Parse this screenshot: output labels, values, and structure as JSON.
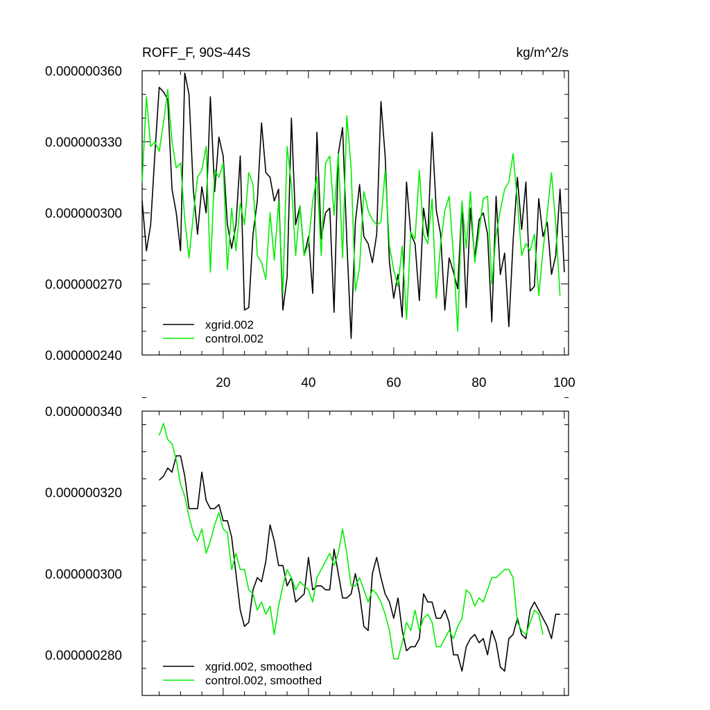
{
  "colors": {
    "xgrid": "#000000",
    "control": "#00ee00",
    "axis": "#000000",
    "background": "#ffffff"
  },
  "chart_data": [
    {
      "type": "line",
      "title": "ROFF_F, 90S-44S",
      "units": "kg/m^2/s",
      "xlabel": "",
      "ylabel": "",
      "xlim": [
        1,
        101
      ],
      "ylim": [
        2.4e-07,
        3.6e-07
      ],
      "x_ticks": [
        20,
        40,
        60,
        80,
        100
      ],
      "x_tick_labels": [
        "20",
        "40",
        "60",
        "80",
        "100"
      ],
      "y_ticks": [
        2.4e-07,
        2.7e-07,
        3e-07,
        3.3e-07,
        3.6e-07
      ],
      "y_tick_labels": [
        "0.000000240",
        "0.000000270",
        "0.000000300",
        "0.000000330",
        "0.000000360"
      ],
      "grid": false,
      "legend_position": "bottom-left",
      "x_start": 1,
      "series": [
        {
          "name": "xgrid.002",
          "color_key": "xgrid",
          "values": [
            3.05e-07,
            2.84e-07,
            2.95e-07,
            3.25e-07,
            3.53e-07,
            3.51e-07,
            3.48e-07,
            3.1e-07,
            3e-07,
            2.84e-07,
            3.59e-07,
            3.5e-07,
            3.1e-07,
            2.91e-07,
            3.11e-07,
            3e-07,
            3.49e-07,
            3.09e-07,
            3.32e-07,
            3.24e-07,
            2.95e-07,
            2.85e-07,
            2.95e-07,
            3.24e-07,
            2.59e-07,
            2.6e-07,
            2.91e-07,
            3.05e-07,
            3.38e-07,
            3.17e-07,
            3.15e-07,
            3.05e-07,
            3.1e-07,
            2.59e-07,
            2.73e-07,
            3.4e-07,
            2.95e-07,
            3.03e-07,
            2.82e-07,
            2.9e-07,
            2.66e-07,
            3.34e-07,
            2.89e-07,
            3e-07,
            3.02e-07,
            2.58e-07,
            3.25e-07,
            3.36e-07,
            2.88e-07,
            2.47e-07,
            2.96e-07,
            3.12e-07,
            2.9e-07,
            2.87e-07,
            2.79e-07,
            2.91e-07,
            3.47e-07,
            3.24e-07,
            2.79e-07,
            2.64e-07,
            2.74e-07,
            2.56e-07,
            3.13e-07,
            2.91e-07,
            2.87e-07,
            2.63e-07,
            3.02e-07,
            2.9e-07,
            3.34e-07,
            3.01e-07,
            2.91e-07,
            2.59e-07,
            2.81e-07,
            2.75e-07,
            2.68e-07,
            3.04e-07,
            2.6e-07,
            3.02e-07,
            2.81e-07,
            2.97e-07,
            3e-07,
            2.91e-07,
            2.54e-07,
            3.07e-07,
            2.74e-07,
            2.83e-07,
            2.52e-07,
            2.88e-07,
            3.15e-07,
            2.93e-07,
            3.13e-07,
            2.67e-07,
            2.69e-07,
            3.06e-07,
            2.9e-07,
            2.96e-07,
            2.74e-07,
            2.82e-07,
            3.1e-07,
            2.75e-07
          ]
        },
        {
          "name": "control.002",
          "color_key": "control",
          "values": [
            3.13e-07,
            3.49e-07,
            3.28e-07,
            3.3e-07,
            3.26e-07,
            3.38e-07,
            3.52e-07,
            3.3e-07,
            3.19e-07,
            3.21e-07,
            2.97e-07,
            2.81e-07,
            2.99e-07,
            3.15e-07,
            3.18e-07,
            3.28e-07,
            2.75e-07,
            3.18e-07,
            3.15e-07,
            3.21e-07,
            2.76e-07,
            3.02e-07,
            2.84e-07,
            3.04e-07,
            2.95e-07,
            3.17e-07,
            3.12e-07,
            2.82e-07,
            2.79e-07,
            2.72e-07,
            3e-07,
            2.8e-07,
            3.05e-07,
            2.66e-07,
            3.28e-07,
            3.12e-07,
            2.82e-07,
            3.03e-07,
            2.82e-07,
            2.87e-07,
            3.05e-07,
            3.15e-07,
            2.82e-07,
            3.21e-07,
            3.24e-07,
            2.99e-07,
            3.25e-07,
            2.81e-07,
            3.41e-07,
            3.19e-07,
            2.67e-07,
            2.77e-07,
            3.09e-07,
            3.01e-07,
            2.97e-07,
            2.95e-07,
            2.96e-07,
            3.18e-07,
            2.86e-07,
            2.76e-07,
            2.69e-07,
            2.86e-07,
            2.55e-07,
            2.92e-07,
            2.89e-07,
            3.18e-07,
            2.91e-07,
            2.87e-07,
            3.06e-07,
            2.64e-07,
            2.87e-07,
            3.01e-07,
            3.07e-07,
            2.82e-07,
            2.5e-07,
            3.05e-07,
            2.85e-07,
            3.09e-07,
            2.79e-07,
            2.92e-07,
            3.06e-07,
            3.07e-07,
            2.7e-07,
            2.91e-07,
            3.01e-07,
            3.1e-07,
            3.13e-07,
            3.25e-07,
            3.05e-07,
            2.82e-07,
            2.87e-07,
            2.84e-07,
            2.91e-07,
            2.65e-07,
            2.84e-07,
            3e-07,
            3.17e-07,
            2.95e-07,
            2.65e-07
          ]
        }
      ]
    },
    {
      "type": "line",
      "title": "",
      "xlabel": "",
      "ylabel": "",
      "xlim": [
        1,
        101
      ],
      "ylim": [
        2.7e-07,
        3.4e-07
      ],
      "x_ticks": [
        20,
        40,
        60,
        80,
        100
      ],
      "x_tick_labels": [],
      "y_ticks": [
        2.8e-07,
        3e-07,
        3.2e-07,
        3.4e-07
      ],
      "y_tick_labels": [
        "0.000000280",
        "0.000000300",
        "0.000000320",
        "0.000000340"
      ],
      "grid": false,
      "legend_position": "bottom-left",
      "x_start": 5,
      "series": [
        {
          "name": "xgrid.002, smoothed",
          "color_key": "xgrid",
          "values": [
            3.23e-07,
            3.24e-07,
            3.26e-07,
            3.25e-07,
            3.29e-07,
            3.29e-07,
            3.24e-07,
            3.16e-07,
            3.16e-07,
            3.16e-07,
            3.25e-07,
            3.18e-07,
            3.16e-07,
            3.16e-07,
            3.17e-07,
            3.13e-07,
            3.13e-07,
            3.09e-07,
            3e-07,
            2.91e-07,
            2.87e-07,
            2.88e-07,
            2.96e-07,
            2.99e-07,
            2.98e-07,
            3.03e-07,
            3.12e-07,
            3.08e-07,
            3.02e-07,
            3.02e-07,
            2.97e-07,
            2.99e-07,
            2.93e-07,
            2.94e-07,
            2.95e-07,
            3.04e-07,
            2.96e-07,
            2.97e-07,
            2.97e-07,
            2.96e-07,
            2.96e-07,
            3.06e-07,
            3e-07,
            2.94e-07,
            2.94e-07,
            2.95e-07,
            3e-07,
            2.95e-07,
            2.87e-07,
            2.86e-07,
            3e-07,
            3.04e-07,
            2.99e-07,
            2.95e-07,
            2.93e-07,
            2.89e-07,
            2.94e-07,
            2.86e-07,
            2.81e-07,
            2.82e-07,
            2.82e-07,
            2.84e-07,
            2.95e-07,
            2.93e-07,
            2.93e-07,
            2.89e-07,
            2.89e-07,
            2.91e-07,
            2.88e-07,
            2.8e-07,
            2.8e-07,
            2.76e-07,
            2.82e-07,
            2.84e-07,
            2.85e-07,
            2.83e-07,
            2.84e-07,
            2.8e-07,
            2.86e-07,
            2.83e-07,
            2.77e-07,
            2.76e-07,
            2.84e-07,
            2.85e-07,
            2.89e-07,
            2.85e-07,
            2.84e-07,
            2.91e-07,
            2.93e-07,
            2.91e-07,
            2.89e-07,
            2.87e-07,
            2.84e-07,
            2.9e-07,
            2.9e-07
          ]
        },
        {
          "name": "control.002, smoothed",
          "color_key": "control",
          "values": [
            3.34e-07,
            3.37e-07,
            3.33e-07,
            3.32e-07,
            3.28e-07,
            3.22e-07,
            3.19e-07,
            3.14e-07,
            3.1e-07,
            3.08e-07,
            3.11e-07,
            3.05e-07,
            3.08e-07,
            3.12e-07,
            3.15e-07,
            3.11e-07,
            3.1e-07,
            3.01e-07,
            3.05e-07,
            3.01e-07,
            3.01e-07,
            2.96e-07,
            2.95e-07,
            2.91e-07,
            2.93e-07,
            2.9e-07,
            2.92e-07,
            2.85e-07,
            2.92e-07,
            2.97e-07,
            3.01e-07,
            2.99e-07,
            2.96e-07,
            2.98e-07,
            2.97e-07,
            2.96e-07,
            2.93e-07,
            2.99e-07,
            3.01e-07,
            3.03e-07,
            3.05e-07,
            3.02e-07,
            3.05e-07,
            3.11e-07,
            3.05e-07,
            2.97e-07,
            2.97e-07,
            2.99e-07,
            2.96e-07,
            2.93e-07,
            2.96e-07,
            2.95e-07,
            2.93e-07,
            2.9e-07,
            2.86e-07,
            2.79e-07,
            2.79e-07,
            2.83e-07,
            2.88e-07,
            2.86e-07,
            2.91e-07,
            2.86e-07,
            2.89e-07,
            2.9e-07,
            2.88e-07,
            2.82e-07,
            2.82e-07,
            2.84e-07,
            2.86e-07,
            2.84e-07,
            2.87e-07,
            2.89e-07,
            2.96e-07,
            2.95e-07,
            2.92e-07,
            2.94e-07,
            2.93e-07,
            2.96e-07,
            2.99e-07,
            2.99e-07,
            3e-07,
            3.01e-07,
            3.01e-07,
            2.99e-07,
            2.88e-07,
            2.86e-07,
            2.85e-07,
            2.88e-07,
            2.91e-07,
            2.9e-07,
            2.85e-07
          ]
        }
      ]
    }
  ]
}
